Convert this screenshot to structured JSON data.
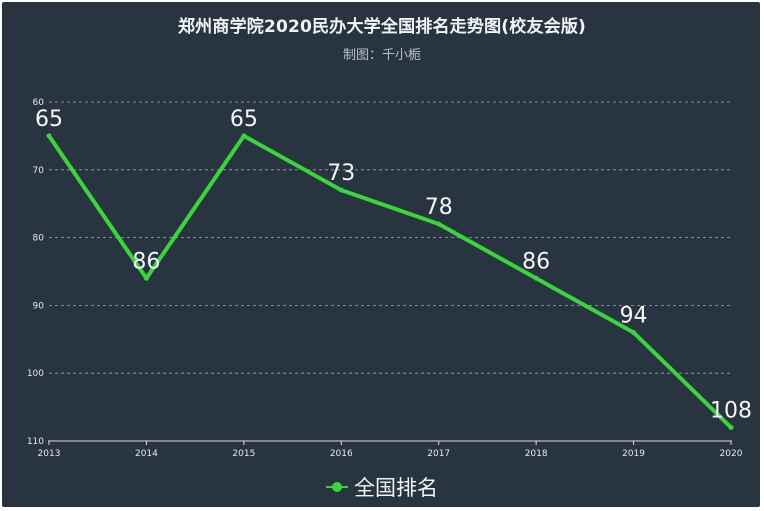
{
  "title": "郑州商学院2020民办大学全国排名走势图(校友会版)",
  "subtitle": "制图：千小栀",
  "colors": {
    "background": "#293441",
    "line": "#39d63a",
    "grid": "#c8cdd3",
    "axis": "#d9dde2",
    "text": "#f2f4f7"
  },
  "chart_data": {
    "type": "line",
    "title": "郑州商学院2020民办大学全国排名走势图(校友会版)",
    "subtitle": "制图：千小栀",
    "x": [
      "2013",
      "2014",
      "2015",
      "2016",
      "2017",
      "2018",
      "2019",
      "2020"
    ],
    "series": [
      {
        "name": "全国排名",
        "values": [
          65,
          86,
          65,
          73,
          78,
          86,
          94,
          108
        ]
      }
    ],
    "ylim": [
      60,
      110
    ],
    "yticks": [
      60,
      70,
      80,
      90,
      100,
      110
    ],
    "y_inverted": true,
    "grid": true,
    "legend": "bottom-center",
    "data_labels": true
  }
}
